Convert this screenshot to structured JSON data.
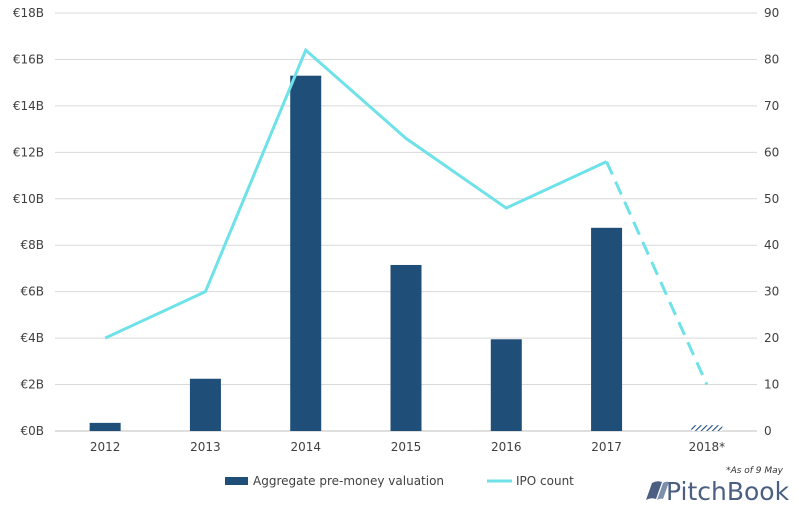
{
  "chart_data": {
    "type": "bar",
    "categories": [
      "2012",
      "2013",
      "2014",
      "2015",
      "2016",
      "2017",
      "2018*"
    ],
    "series": [
      {
        "name": "Aggregate pre-money valuation",
        "type": "bar",
        "axis": "left",
        "unit": "€B",
        "values": [
          0.35,
          2.25,
          15.3,
          7.15,
          3.95,
          8.75,
          0.25
        ],
        "color": "#1f4e79",
        "hatched_categories": [
          "2018*"
        ]
      },
      {
        "name": "IPO count",
        "type": "line",
        "axis": "right",
        "values": [
          20,
          30,
          82,
          63,
          48,
          58,
          10
        ],
        "color": "#6ee2e8",
        "dashed_from": "2017"
      }
    ],
    "y_left": {
      "ylim": [
        0,
        18
      ],
      "ticks": [
        0,
        2,
        4,
        6,
        8,
        10,
        12,
        14,
        16,
        18
      ],
      "tick_labels": [
        "€0B",
        "€2B",
        "€4B",
        "€6B",
        "€8B",
        "€10B",
        "€12B",
        "€14B",
        "€16B",
        "€18B"
      ]
    },
    "y_right": {
      "ylim": [
        0,
        90
      ],
      "ticks": [
        0,
        10,
        20,
        30,
        40,
        50,
        60,
        70,
        80,
        90
      ],
      "tick_labels": [
        "0",
        "10",
        "20",
        "30",
        "40",
        "50",
        "60",
        "70",
        "80",
        "90"
      ]
    },
    "grid": true,
    "legend_position": "bottom",
    "annotation": "*As of 9 May"
  },
  "brand": "PitchBook"
}
